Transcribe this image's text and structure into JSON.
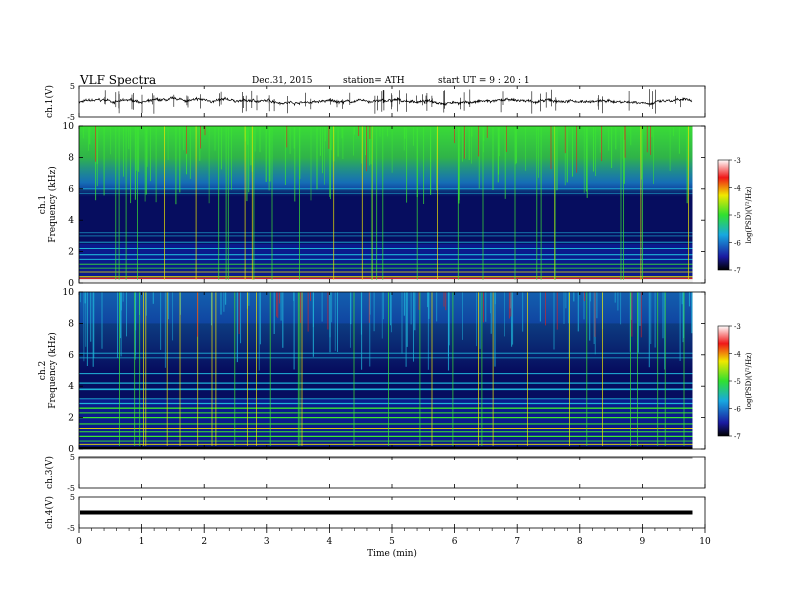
{
  "header": {
    "title": "VLF  Spectra",
    "date": "Dec.31, 2015",
    "station": "station= ATH",
    "start": "start  UT  =   9  : 20 : 1"
  },
  "chart_data": [
    {
      "type": "line",
      "name": "ch1-waveform",
      "ylabel": "ch.1(V)",
      "ylim": [
        -5,
        5
      ],
      "yticks": [
        "5",
        "-5"
      ],
      "baseline": 0,
      "xlim": [
        0,
        10
      ]
    },
    {
      "type": "heatmap",
      "name": "ch1-spectrogram",
      "ylabel_line1": "ch.1",
      "ylabel_line2": "Frequency (kHz)",
      "ylim": [
        0,
        10
      ],
      "yticks": [
        "0",
        "2",
        "4",
        "6",
        "8",
        "10"
      ],
      "xlim": [
        0,
        10
      ],
      "data_end_min": 9.8,
      "colorbar": {
        "label": "log(PSD)(V²/Hz)",
        "range": [
          -7,
          -3
        ],
        "ticks": [
          "-3",
          "-4",
          "-5",
          "-6",
          "-7"
        ]
      }
    },
    {
      "type": "heatmap",
      "name": "ch2-spectrogram",
      "ylabel_line1": "ch.2",
      "ylabel_line2": "Frequency (kHz)",
      "ylim": [
        0,
        10
      ],
      "yticks": [
        "0",
        "2",
        "4",
        "6",
        "8",
        "10"
      ],
      "xlim": [
        0,
        10
      ],
      "data_end_min": 9.8,
      "colorbar": {
        "label": "log(PSD)(V²/Hz)",
        "range": [
          -7,
          -3
        ],
        "ticks": [
          "-3",
          "-4",
          "-5",
          "-6",
          "-7"
        ]
      }
    },
    {
      "type": "line",
      "name": "ch3-waveform",
      "ylabel": "ch.3(V)",
      "ylim": [
        -5,
        5
      ],
      "yticks": [
        "5",
        "-5"
      ],
      "baseline": 5,
      "xlim": [
        0,
        10
      ]
    },
    {
      "type": "line",
      "name": "ch4-waveform",
      "ylabel": "ch.4(V)",
      "ylim": [
        -5,
        5
      ],
      "yticks": [
        "5",
        "-5"
      ],
      "baseline": 0,
      "xlim": [
        0,
        10
      ]
    }
  ],
  "xaxis": {
    "label": "Time  (min)",
    "ticks": [
      "0",
      "1",
      "2",
      "3",
      "4",
      "5",
      "6",
      "7",
      "8",
      "9",
      "10"
    ]
  },
  "colors": {
    "spec_bg": "#0a1a8c",
    "dark_blue": "#050a50",
    "cyan": "#1fb4d8",
    "green": "#3ce632",
    "yellow": "#f2e600",
    "red": "#e61e1e"
  }
}
